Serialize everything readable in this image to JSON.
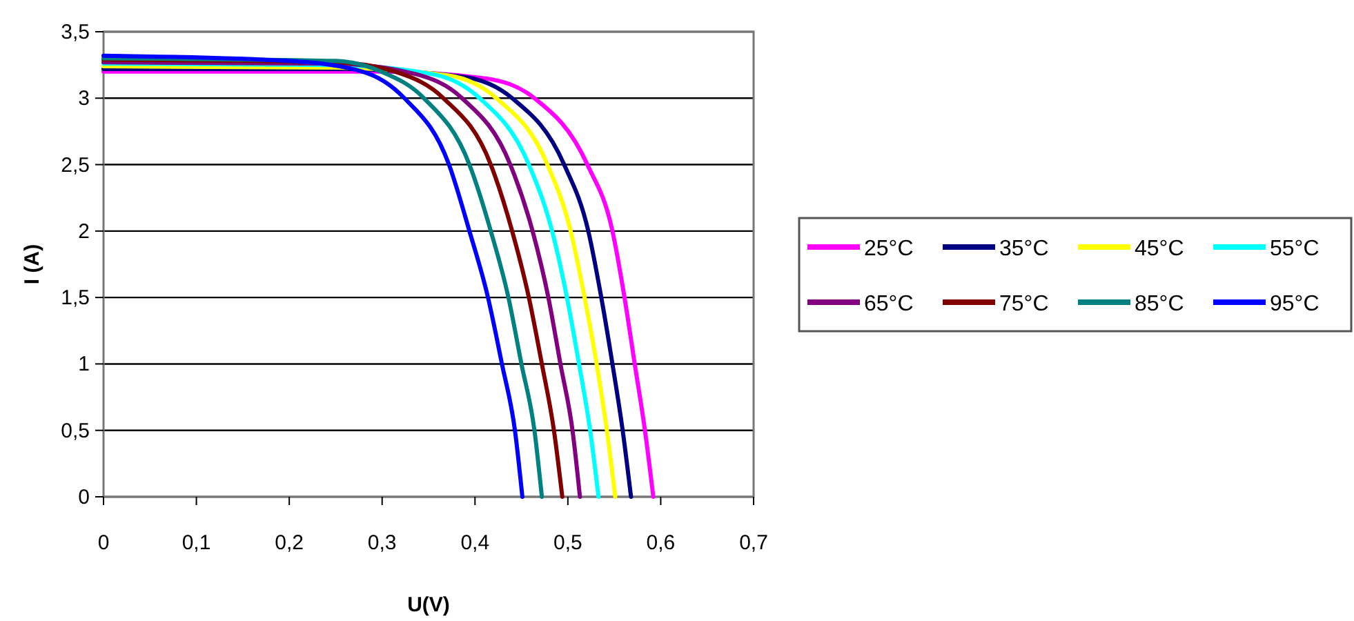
{
  "chart_data": {
    "type": "line",
    "xlabel": "U(V)",
    "ylabel": "I (A)",
    "xlim": [
      0,
      0.7
    ],
    "xticks": [
      {
        "value": 0,
        "label": "0"
      },
      {
        "value": 0.1,
        "label": "0,1"
      },
      {
        "value": 0.2,
        "label": "0,2"
      },
      {
        "value": 0.3,
        "label": "0,3"
      },
      {
        "value": 0.4,
        "label": "0,4"
      },
      {
        "value": 0.5,
        "label": "0,5"
      },
      {
        "value": 0.6,
        "label": "0,6"
      },
      {
        "value": 0.7,
        "label": "0,7"
      }
    ],
    "ylim": [
      0,
      3.5
    ],
    "yticks": [
      {
        "value": 0,
        "label": "0"
      },
      {
        "value": 0.5,
        "label": "0,5"
      },
      {
        "value": 1,
        "label": "1"
      },
      {
        "value": 1.5,
        "label": "1,5"
      },
      {
        "value": 2,
        "label": "2"
      },
      {
        "value": 2.5,
        "label": "2,5"
      },
      {
        "value": 3,
        "label": "3"
      },
      {
        "value": 3.5,
        "label": "3,5"
      }
    ],
    "grid": "y",
    "legend": "right",
    "marker": "none",
    "line_style": "solid",
    "series": [
      {
        "name": "25°C",
        "color": "#ff00ff",
        "x": [
          0,
          0.3,
          0.41,
          0.464,
          0.521,
          0.548,
          0.561,
          0.572,
          0.583,
          0.592
        ],
        "values": [
          3.2,
          3.2,
          3.15,
          3.0,
          2.5,
          2.0,
          1.5,
          1.0,
          0.5,
          0
        ]
      },
      {
        "name": "35°C",
        "color": "#000080",
        "x": [
          0,
          0.25,
          0.388,
          0.44,
          0.496,
          0.522,
          0.536,
          0.548,
          0.559,
          0.568
        ],
        "values": [
          3.22,
          3.22,
          3.16,
          3.0,
          2.5,
          2.0,
          1.5,
          1.0,
          0.5,
          0
        ]
      },
      {
        "name": "45°C",
        "color": "#ffff00",
        "x": [
          0,
          0.25,
          0.372,
          0.423,
          0.478,
          0.503,
          0.518,
          0.531,
          0.542,
          0.551
        ],
        "values": [
          3.24,
          3.23,
          3.17,
          3.0,
          2.5,
          2.0,
          1.5,
          1.0,
          0.5,
          0
        ]
      },
      {
        "name": "55°C",
        "color": "#00ffff",
        "x": [
          0,
          0.25,
          0.355,
          0.405,
          0.458,
          0.483,
          0.499,
          0.512,
          0.524,
          0.533
        ],
        "values": [
          3.26,
          3.25,
          3.18,
          3.0,
          2.5,
          2.0,
          1.5,
          1.0,
          0.5,
          0
        ]
      },
      {
        "name": "65°C",
        "color": "#800080",
        "x": [
          0,
          0.25,
          0.337,
          0.386,
          0.438,
          0.462,
          0.479,
          0.492,
          0.505,
          0.513
        ],
        "values": [
          3.27,
          3.26,
          3.18,
          3.0,
          2.5,
          2.0,
          1.5,
          1.0,
          0.5,
          0
        ]
      },
      {
        "name": "75°C",
        "color": "#800000",
        "x": [
          0,
          0.25,
          0.318,
          0.366,
          0.417,
          0.44,
          0.458,
          0.472,
          0.485,
          0.494
        ],
        "values": [
          3.29,
          3.27,
          3.19,
          3.0,
          2.5,
          2.0,
          1.5,
          1.0,
          0.5,
          0
        ]
      },
      {
        "name": "85°C",
        "color": "#008080",
        "x": [
          0,
          0.25,
          0.299,
          0.345,
          0.394,
          0.417,
          0.436,
          0.45,
          0.464,
          0.472
        ],
        "values": [
          3.3,
          3.28,
          3.2,
          3.0,
          2.5,
          2.0,
          1.5,
          1.0,
          0.5,
          0
        ]
      },
      {
        "name": "95°C",
        "color": "#0000ff",
        "x": [
          0,
          0.2,
          0.279,
          0.324,
          0.372,
          0.394,
          0.414,
          0.429,
          0.443,
          0.451
        ],
        "values": [
          3.32,
          3.28,
          3.2,
          3.0,
          2.5,
          2.0,
          1.5,
          1.0,
          0.5,
          0
        ]
      }
    ]
  }
}
